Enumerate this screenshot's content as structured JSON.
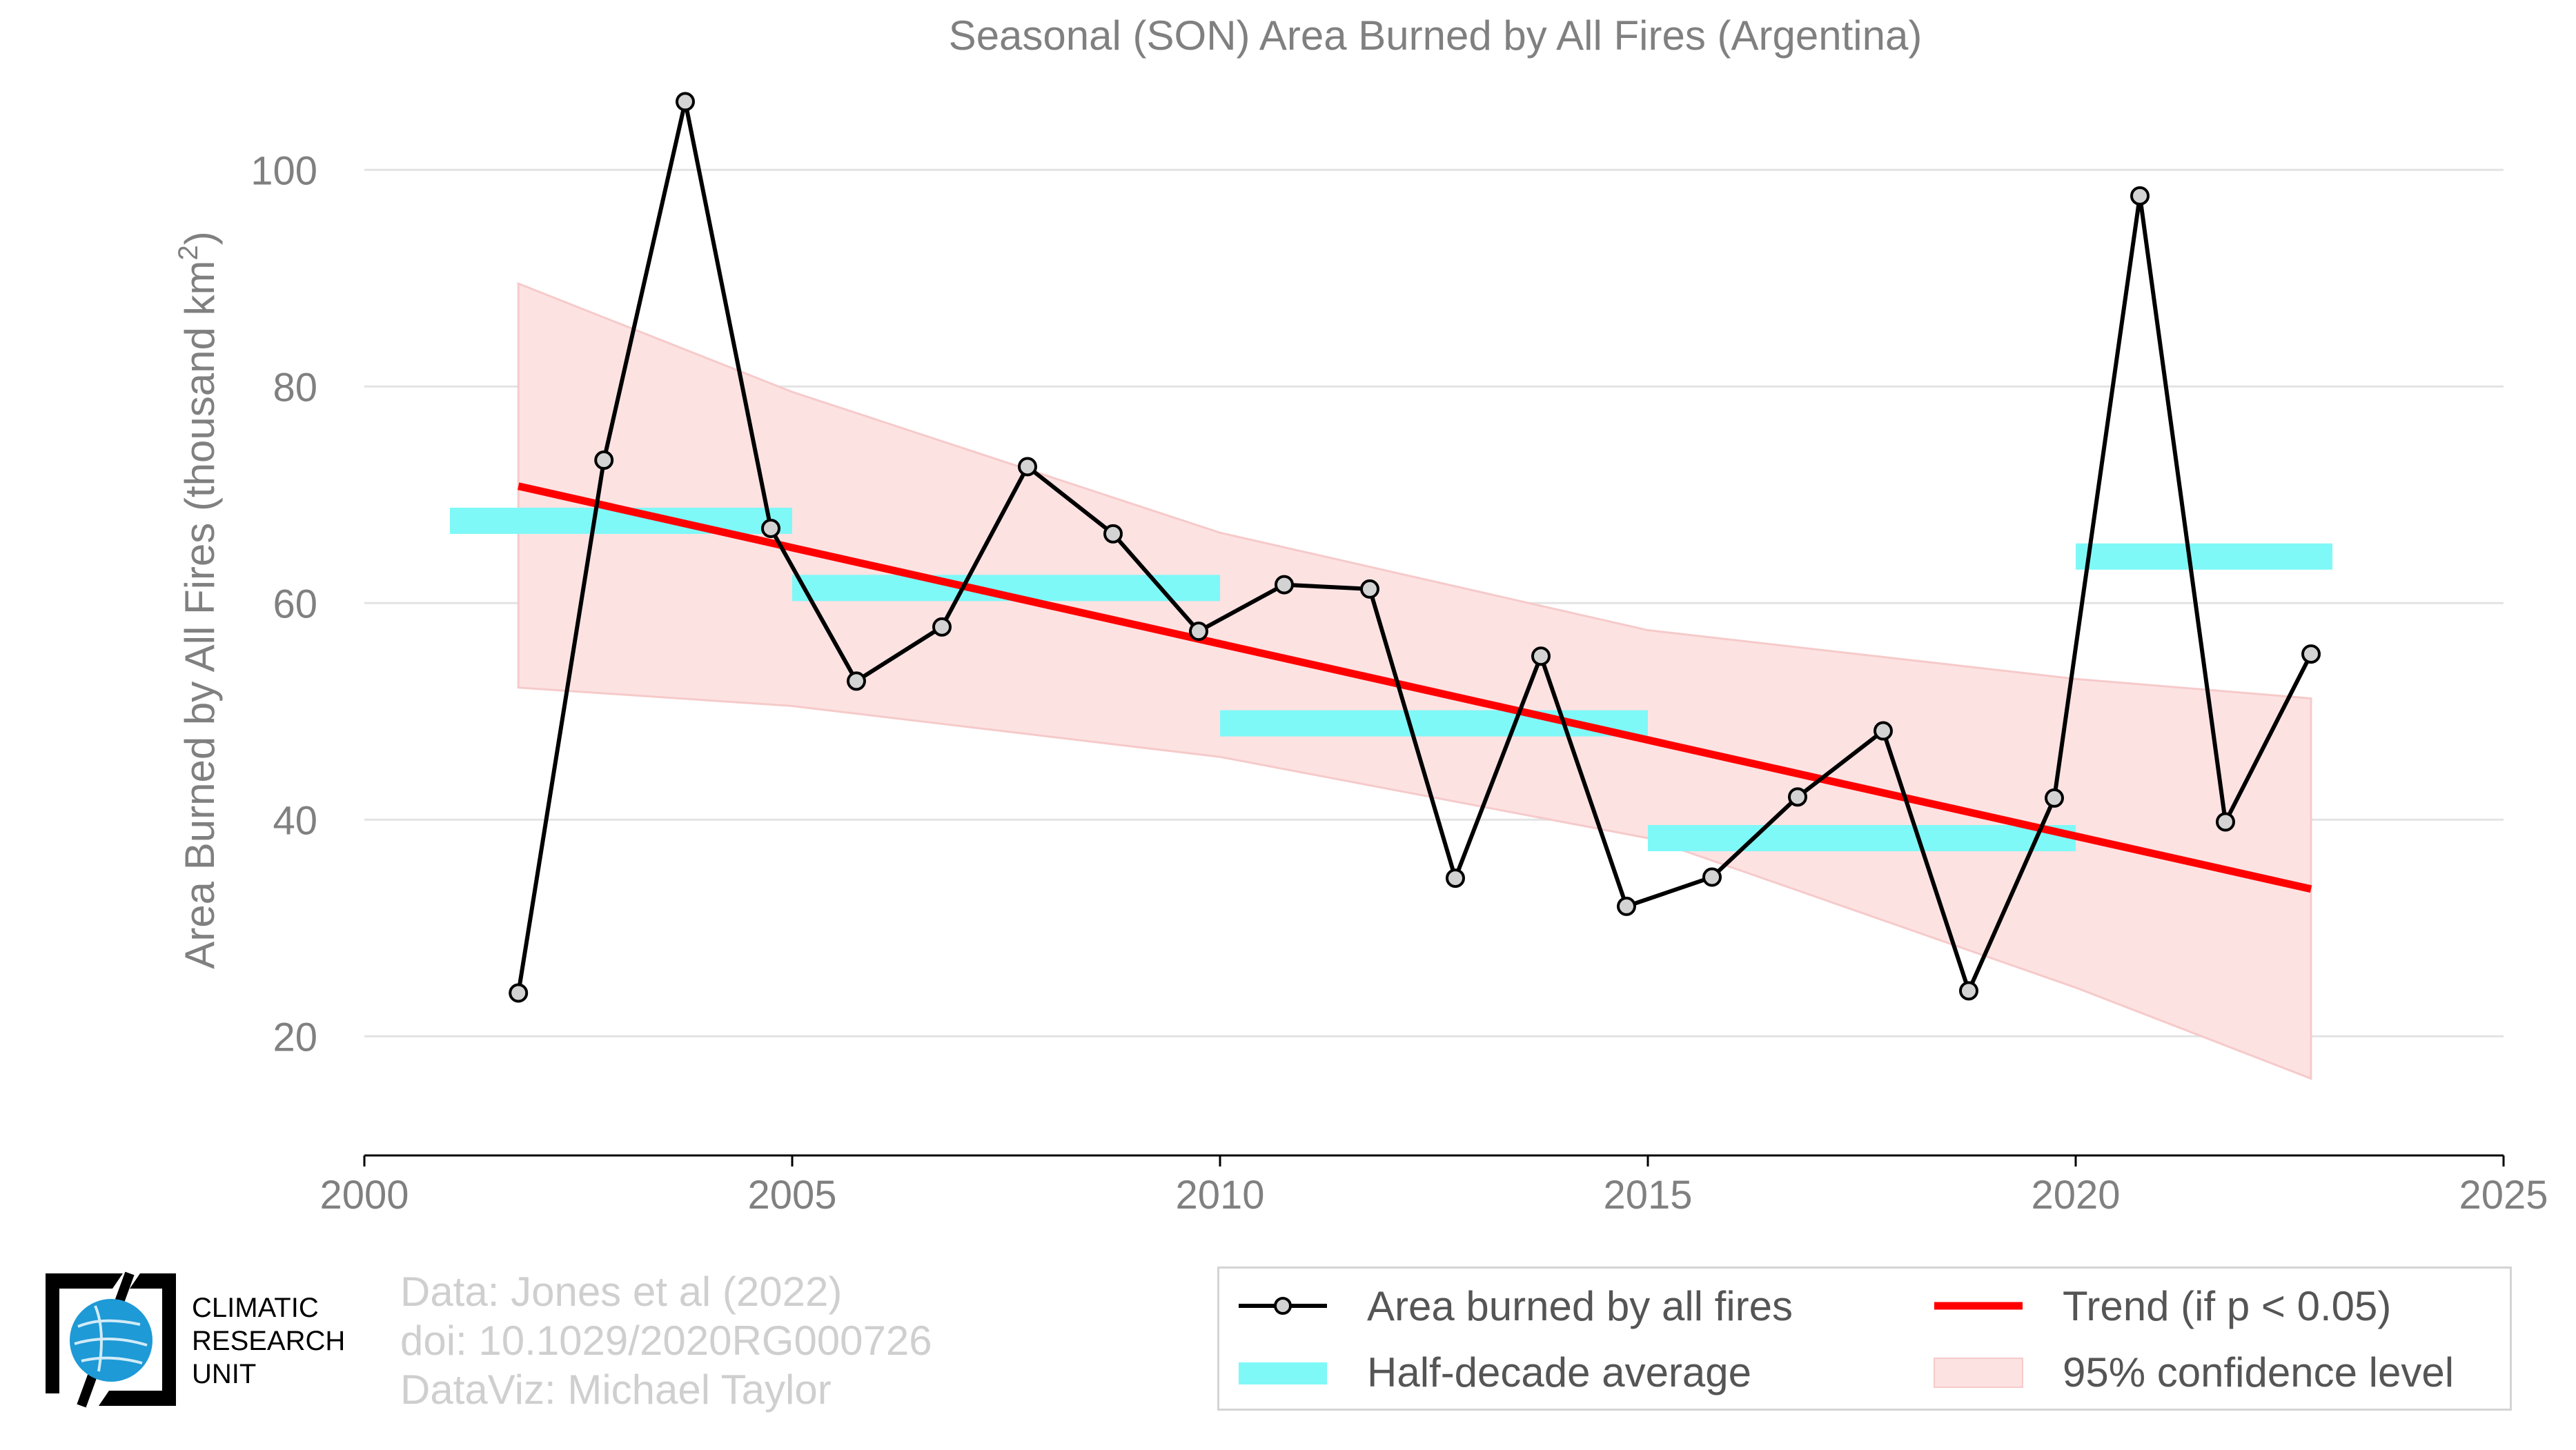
{
  "chart_data": {
    "type": "line",
    "title": "Seasonal (SON) Area Burned by All Fires (Argentina)",
    "ylabel": "Area Burned by All Fires (thousand km",
    "ylabel_sup": "2",
    "ylabel_tail": ")",
    "xlim": [
      2000,
      2025
    ],
    "ylim": [
      9,
      109
    ],
    "xticks": [
      2000,
      2005,
      2010,
      2015,
      2020,
      2025
    ],
    "yticks": [
      20,
      40,
      60,
      80,
      100
    ],
    "grid": true,
    "legend_position": "bottom-right",
    "series": [
      {
        "name": "Area burned by all fires",
        "x": [
          2001.8,
          2002.8,
          2003.75,
          2004.75,
          2005.75,
          2006.75,
          2007.75,
          2008.75,
          2009.75,
          2010.75,
          2011.75,
          2012.75,
          2013.75,
          2014.75,
          2015.75,
          2016.75,
          2017.75,
          2018.75,
          2019.75,
          2020.75,
          2021.75,
          2022.75
        ],
        "values": [
          24.0,
          73.2,
          106.3,
          66.9,
          52.8,
          57.8,
          72.6,
          66.4,
          57.4,
          61.7,
          61.3,
          34.6,
          55.1,
          32.0,
          34.7,
          42.1,
          48.2,
          24.2,
          42.0,
          97.6,
          39.8,
          55.3
        ],
        "color": "#000000"
      }
    ],
    "half_decade_average": {
      "name": "Half-decade average",
      "color": "#7ff8f8",
      "segments": [
        {
          "x0": 2001,
          "x1": 2005,
          "value": 67.6
        },
        {
          "x0": 2005,
          "x1": 2010,
          "value": 61.4
        },
        {
          "x0": 2010,
          "x1": 2015,
          "value": 48.9
        },
        {
          "x0": 2015,
          "x1": 2020,
          "value": 38.3
        },
        {
          "x0": 2020,
          "x1": 2023,
          "value": 64.3
        }
      ]
    },
    "trend": {
      "name": "Trend (if p < 0.05)",
      "color": "#ff0000",
      "x": [
        2001.8,
        2022.75
      ],
      "values": [
        70.8,
        33.6
      ]
    },
    "confidence_band": {
      "name": "95% confidence level",
      "color": "#fde2e2",
      "x": [
        2001.8,
        2005,
        2010,
        2015,
        2020,
        2022.75
      ],
      "upper": [
        89.5,
        79.5,
        66.5,
        57.5,
        53.0,
        51.2
      ],
      "lower": [
        52.2,
        50.5,
        45.8,
        38.3,
        24.5,
        16.1
      ]
    }
  },
  "credits": {
    "data": "Data: Jones et al (2022)",
    "doi": "doi: 10.1029/2020RG000726",
    "dataviz": "DataViz: Michael Taylor"
  },
  "logo": {
    "line1": "CLIMATIC",
    "line2": "RESEARCH",
    "line3": "UNIT",
    "globe_color": "#1e9ad6"
  },
  "legend": {
    "series": "Area burned by all fires",
    "half_decade": "Half-decade average",
    "trend": "Trend (if p < 0.05)",
    "confidence": "95% confidence level"
  }
}
